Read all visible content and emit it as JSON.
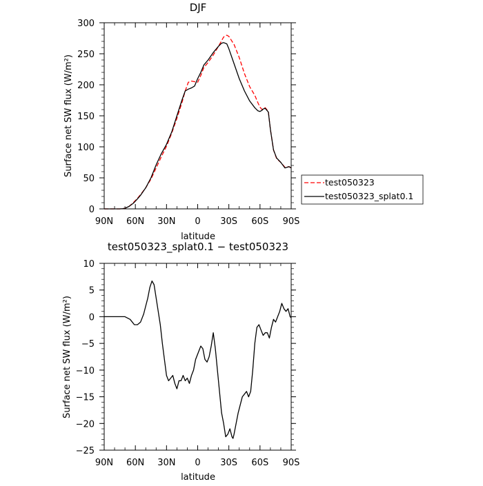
{
  "chart_data": [
    {
      "type": "line",
      "title": "DJF",
      "xlabel": "latitude",
      "ylabel": "Surface net SW flux (W/m²)",
      "xlim": [
        90,
        -90
      ],
      "ylim": [
        0,
        300
      ],
      "x_ticks": [
        90,
        60,
        30,
        0,
        -30,
        -60,
        -90
      ],
      "x_tick_labels": [
        "90N",
        "60N",
        "30N",
        "0",
        "30S",
        "60S",
        "90S"
      ],
      "y_ticks": [
        0,
        50,
        100,
        150,
        200,
        250,
        300
      ],
      "y_tick_labels": [
        "0",
        "50",
        "100",
        "150",
        "200",
        "250",
        "300"
      ],
      "legend_position": "right",
      "series": [
        {
          "name": "test050323",
          "color": "#ff0000",
          "dash": "dashed",
          "x": [
            90,
            80,
            75,
            72,
            70,
            66,
            62,
            58,
            55,
            50,
            45,
            40,
            35,
            30,
            25,
            20,
            15,
            12,
            9,
            6,
            3,
            0,
            -3,
            -6,
            -10,
            -15,
            -20,
            -23,
            -25,
            -28,
            -30,
            -35,
            -40,
            -45,
            -50,
            -55,
            -58,
            -60,
            -62,
            -63,
            -65,
            -68,
            -70,
            -73,
            -76,
            -80,
            -84,
            -88,
            -90
          ],
          "y": [
            0,
            0,
            0,
            0.5,
            1,
            4,
            10,
            17,
            23,
            34,
            48,
            66,
            84,
            101,
            122,
            146,
            172,
            190,
            204,
            206,
            205,
            204,
            215,
            228,
            236,
            248,
            262,
            271,
            277,
            280,
            278,
            265,
            244,
            218,
            197,
            183,
            171,
            164,
            160,
            162,
            163,
            157,
            128,
            95,
            81,
            75,
            67,
            68,
            66
          ]
        },
        {
          "name": "test050323_splat0.1",
          "color": "#000000",
          "dash": "solid",
          "x": [
            90,
            80,
            75,
            72,
            70,
            66,
            62,
            58,
            55,
            50,
            45,
            40,
            35,
            30,
            25,
            20,
            15,
            12,
            9,
            6,
            3,
            0,
            -3,
            -6,
            -10,
            -15,
            -20,
            -23,
            -25,
            -28,
            -30,
            -35,
            -40,
            -45,
            -50,
            -55,
            -58,
            -60,
            -62,
            -63,
            -65,
            -68,
            -70,
            -73,
            -76,
            -80,
            -84,
            -88,
            -90
          ],
          "y": [
            0,
            0,
            0,
            0.5,
            1,
            4,
            9,
            16,
            22,
            34,
            50,
            71,
            89,
            104,
            124,
            150,
            176,
            190,
            193,
            195,
            198,
            210,
            220,
            232,
            240,
            252,
            262,
            267,
            268,
            266,
            258,
            234,
            210,
            190,
            174,
            163,
            158,
            157,
            159,
            161,
            162,
            156,
            128,
            95,
            82,
            75,
            66,
            68,
            66
          ]
        }
      ]
    },
    {
      "type": "line",
      "title": "test050323_splat0.1 − test050323",
      "xlabel": "latitude",
      "ylabel": "Surface net SW flux (W/m²)",
      "xlim": [
        90,
        -90
      ],
      "ylim": [
        -25,
        10
      ],
      "x_ticks": [
        90,
        60,
        30,
        0,
        -30,
        -60,
        -90
      ],
      "x_tick_labels": [
        "90N",
        "60N",
        "30N",
        "0",
        "30S",
        "60S",
        "90S"
      ],
      "y_ticks": [
        -25,
        -20,
        -15,
        -10,
        -5,
        0,
        5,
        10
      ],
      "y_tick_labels": [
        "−25",
        "−20",
        "−15",
        "−10",
        "−5",
        "0",
        "5",
        "10"
      ],
      "series": [
        {
          "color": "#000000",
          "dash": "solid",
          "x": [
            90,
            80,
            75,
            70,
            65,
            63,
            61,
            58,
            55,
            52,
            50,
            48,
            46,
            44,
            42,
            40,
            38,
            36,
            34,
            32,
            30,
            28,
            26,
            24,
            22,
            20,
            18,
            16,
            14,
            12,
            10,
            8,
            6,
            4,
            2,
            0,
            -2,
            -3,
            -5,
            -7,
            -9,
            -11,
            -13,
            -15,
            -17,
            -19,
            -21,
            -23,
            -25,
            -27,
            -29,
            -31,
            -33,
            -34,
            -35,
            -37,
            -39,
            -41,
            -43,
            -45,
            -47,
            -49,
            -51,
            -53,
            -55,
            -57,
            -59,
            -61,
            -63,
            -65,
            -67,
            -69,
            -71,
            -73,
            -75,
            -77,
            -79,
            -81,
            -83,
            -85,
            -87,
            -89,
            -90
          ],
          "y": [
            0,
            0,
            0,
            0,
            -0.5,
            -1,
            -1.5,
            -1.5,
            -1,
            0.5,
            2,
            3.5,
            5.5,
            6.7,
            6,
            3.5,
            1,
            -1.5,
            -5,
            -8,
            -11,
            -12,
            -11.5,
            -11,
            -12.5,
            -13.5,
            -12,
            -12,
            -11,
            -12,
            -11.5,
            -12.5,
            -11,
            -10,
            -8,
            -7,
            -6,
            -5.5,
            -6,
            -8,
            -8.5,
            -7.5,
            -5.5,
            -3,
            -6,
            -10,
            -14,
            -18,
            -20,
            -22.5,
            -22,
            -21,
            -22.5,
            -22.8,
            -22,
            -20,
            -18,
            -16.5,
            -15,
            -14.5,
            -14,
            -15,
            -14,
            -10,
            -5,
            -2,
            -1.5,
            -2.5,
            -3.5,
            -3,
            -3,
            -4,
            -2,
            -0.5,
            -1,
            0,
            1,
            2.5,
            1.5,
            1,
            1.5,
            0,
            -0.2
          ]
        }
      ]
    }
  ]
}
